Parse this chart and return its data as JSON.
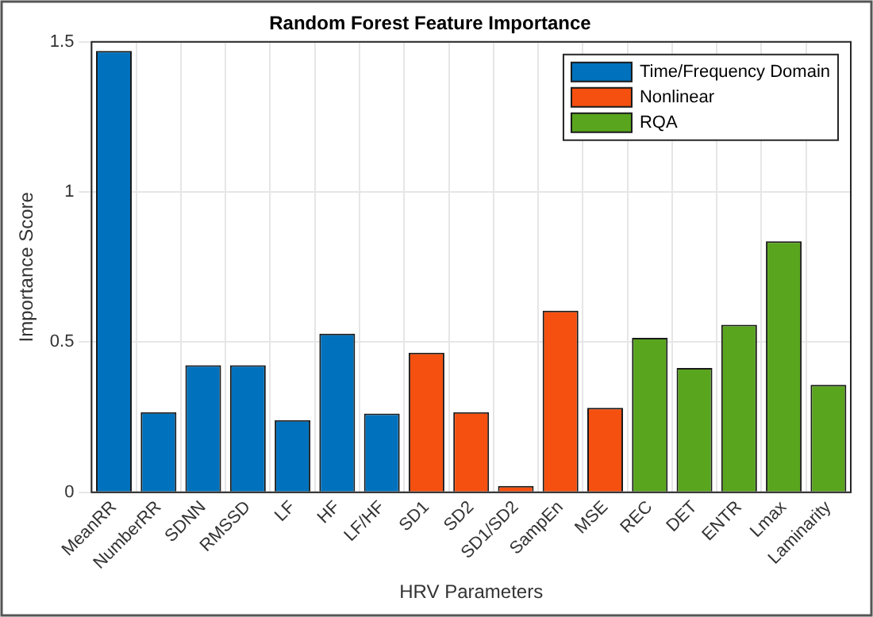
{
  "chart_data": {
    "type": "bar",
    "title": "Random Forest Feature Importance",
    "xlabel": "HRV Parameters",
    "ylabel": "Importance Score",
    "categories": [
      "MeanRR",
      "NumberRR",
      "SDNN",
      "RMSSD",
      "LF",
      "HF",
      "LF/HF",
      "SD1",
      "SD2",
      "SD1/SD2",
      "SampEn",
      "MSE",
      "REC",
      "DET",
      "ENTR",
      "Lmax",
      "Laminarity"
    ],
    "series": [
      {
        "name": "Time/Frequency Domain",
        "color": "#0072bd",
        "values": [
          1.47,
          0.267,
          0.423,
          0.423,
          0.24,
          0.528,
          0.262,
          null,
          null,
          null,
          null,
          null,
          null,
          null,
          null,
          null,
          null
        ]
      },
      {
        "name": "Nonlinear",
        "color": "#f5500f",
        "values": [
          null,
          null,
          null,
          null,
          null,
          null,
          null,
          0.465,
          0.267,
          0.021,
          0.605,
          0.281,
          null,
          null,
          null,
          null,
          null
        ]
      },
      {
        "name": "RQA",
        "color": "#5aa51e",
        "values": [
          null,
          null,
          null,
          null,
          null,
          null,
          null,
          null,
          null,
          null,
          null,
          null,
          0.514,
          0.414,
          0.558,
          0.836,
          0.358
        ]
      }
    ],
    "ylim": [
      0,
      1.5
    ],
    "yticks": [
      0,
      0.5,
      1,
      1.5
    ],
    "grid": true,
    "legend": "top right"
  }
}
